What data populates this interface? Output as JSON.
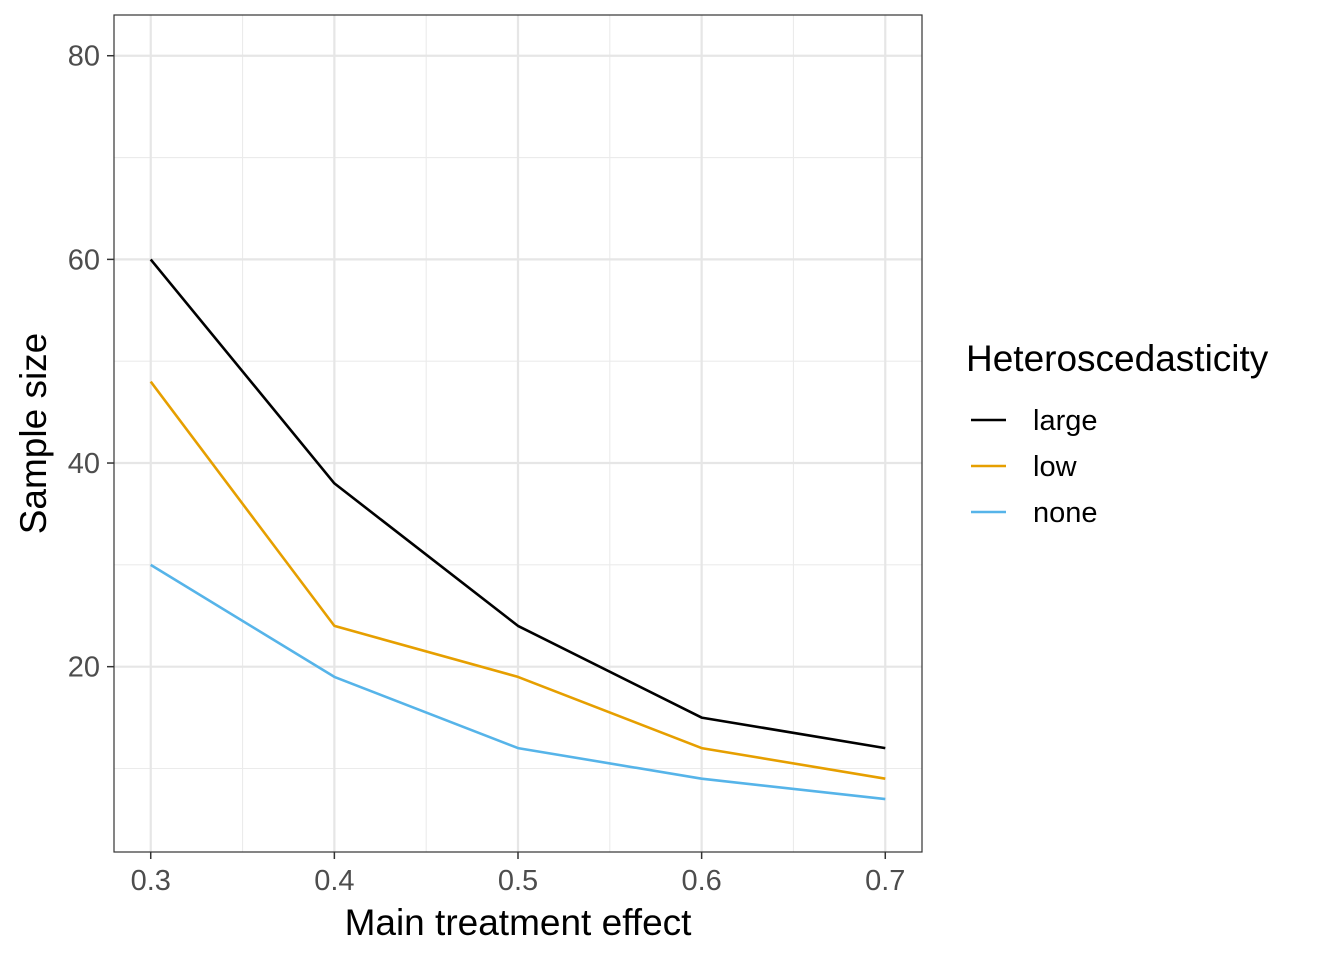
{
  "chart_data": {
    "type": "line",
    "xlabel": "Main treatment effect",
    "ylabel": "Sample size",
    "x": [
      0.3,
      0.4,
      0.5,
      0.6,
      0.7
    ],
    "xlim": [
      0.28,
      0.72
    ],
    "ylim": [
      1.8,
      84
    ],
    "x_ticks": [
      "0.3",
      "0.4",
      "0.5",
      "0.6",
      "0.7"
    ],
    "x_tick_values": [
      0.3,
      0.4,
      0.5,
      0.6,
      0.7
    ],
    "x_minor_values": [
      0.35,
      0.45,
      0.55,
      0.65
    ],
    "y_ticks": [
      "20",
      "40",
      "60",
      "80"
    ],
    "y_tick_values": [
      20,
      40,
      60,
      80
    ],
    "y_minor_values": [
      10,
      30,
      50,
      70
    ],
    "grid": true,
    "legend": {
      "title": "Heteroscedasticity",
      "position": "right"
    },
    "series": [
      {
        "name": "large",
        "color": "#000000",
        "values": [
          60,
          38,
          24,
          15,
          12
        ]
      },
      {
        "name": "low",
        "color": "#E69F00",
        "values": [
          48,
          24,
          19,
          12,
          9
        ]
      },
      {
        "name": "none",
        "color": "#56B4E9",
        "values": [
          30,
          19,
          12,
          9,
          7
        ]
      }
    ]
  }
}
